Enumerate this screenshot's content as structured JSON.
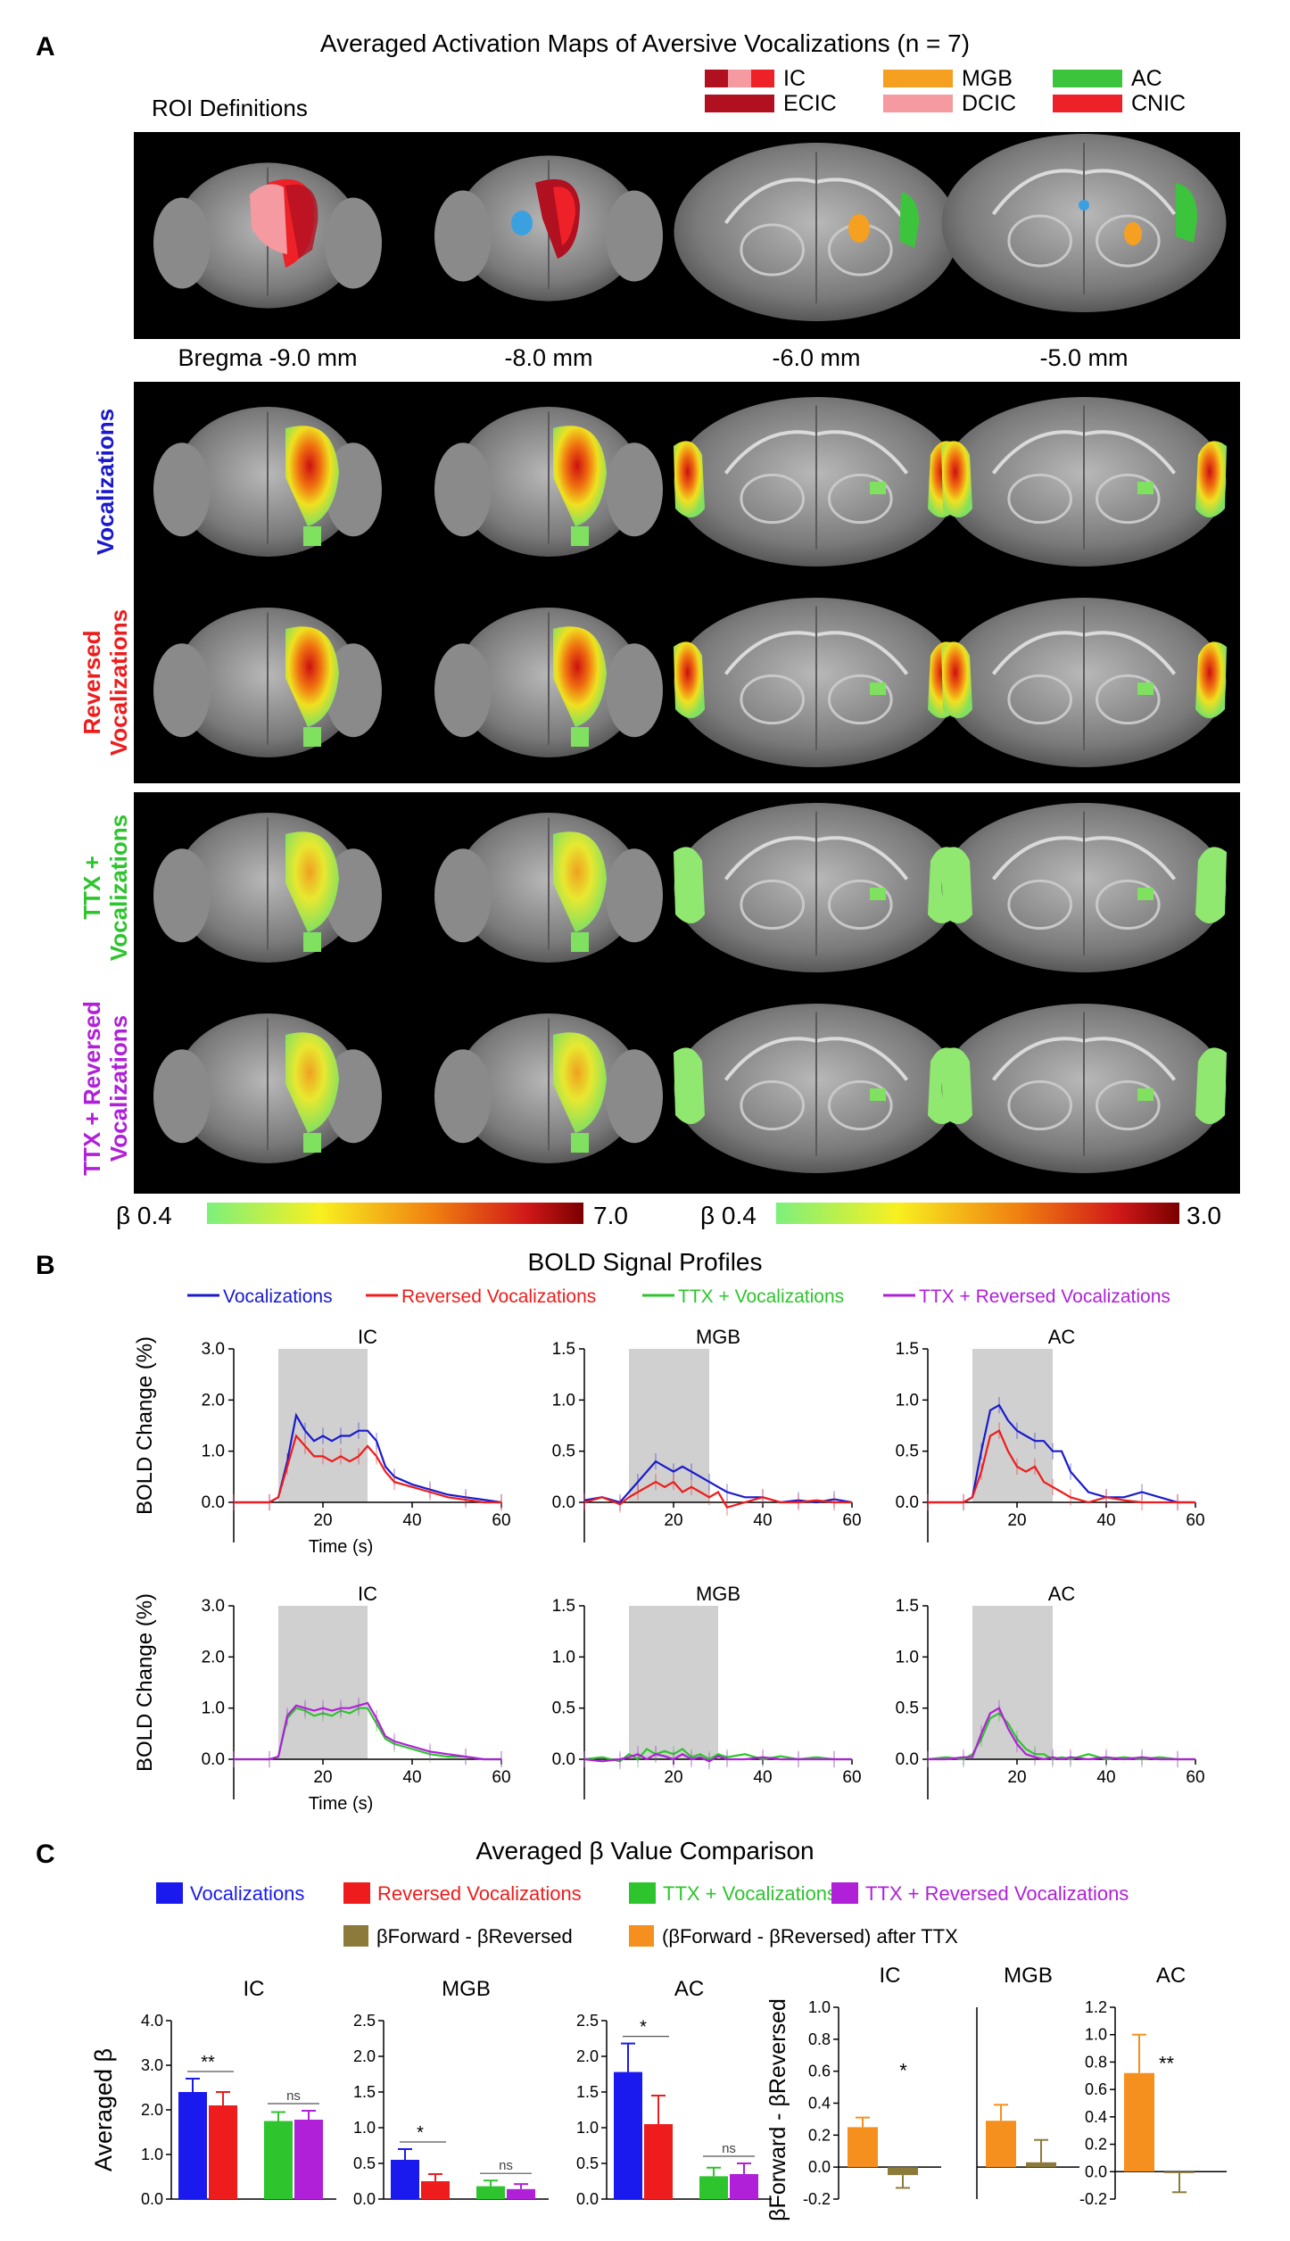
{
  "panelA": {
    "letter": "A",
    "title": "Averaged Activation Maps of Aversive Vocalizations (n = 7)",
    "roi_title": "ROI Definitions",
    "legend": [
      {
        "label": "IC",
        "color": "#c8102e"
      },
      {
        "label": "MGB",
        "color": "#f5a020"
      },
      {
        "label": "AC",
        "color": "#3cc43c"
      },
      {
        "label": "ECIC",
        "color": "#b01020"
      },
      {
        "label": "DCIC",
        "color": "#f59aa0"
      },
      {
        "label": "CNIC",
        "color": "#ee2028"
      }
    ],
    "bregma": [
      "Bregma -9.0 mm",
      "-8.0 mm",
      "-6.0 mm",
      "-5.0 mm"
    ],
    "rows": [
      {
        "label": "Vocalizations",
        "color": "#1a1acc"
      },
      {
        "label": "Reversed Vocalizations",
        "color": "#ee1c1c"
      },
      {
        "label": "TTX + Vocalizations",
        "color": "#2ec42e"
      },
      {
        "label": "TTX + Reversed Vocalizations",
        "color": "#b020d8"
      }
    ],
    "scale_left": {
      "min": "β 0.4",
      "max": "7.0"
    },
    "scale_right": {
      "min": "β 0.4",
      "max": "3.0"
    }
  },
  "panelB": {
    "letter": "B",
    "title": "BOLD Signal Profiles",
    "legend": [
      {
        "label": "Vocalizations",
        "color": "#1a1acc"
      },
      {
        "label": "Reversed Vocalizations",
        "color": "#ee1c1c"
      },
      {
        "label": "TTX + Vocalizations",
        "color": "#2ec42e"
      },
      {
        "label": "TTX + Reversed Vocalizations",
        "color": "#b020d8"
      }
    ],
    "ylabel": "BOLD Change (%)",
    "xlabel": "Time (s)"
  },
  "panelC": {
    "letter": "C",
    "title": "Averaged β Value Comparison",
    "legend": [
      {
        "label": "Vocalizations",
        "color": "#1a1aee"
      },
      {
        "label": "Reversed Vocalizations",
        "color": "#ee1c1c"
      },
      {
        "label": "TTX + Vocalizations",
        "color": "#2ec42e"
      },
      {
        "label": "TTX + Reversed Vocalizations",
        "color": "#b020d8"
      }
    ],
    "diff_legend": [
      {
        "label": "βForward - βReversed",
        "color": "#8c7a3a"
      },
      {
        "label": "(βForward - βReversed) after TTX",
        "color": "#f5901e"
      }
    ],
    "ylabel_left": "Averaged β",
    "ylabel_right": "βForward - βReversed"
  },
  "chart_data": [
    {
      "type": "line",
      "title": "IC",
      "xlabel": "Time (s)",
      "ylabel": "BOLD Change (%)",
      "xlim": [
        0,
        60
      ],
      "ylim": [
        0,
        3.0
      ],
      "yticks": [
        0.0,
        1.0,
        2.0,
        3.0
      ],
      "xticks": [
        20,
        40,
        60
      ],
      "stimulus": [
        10,
        30
      ],
      "series": [
        {
          "name": "Vocalizations",
          "color": "#1a1acc",
          "x": [
            0,
            4,
            8,
            10,
            12,
            14,
            16,
            18,
            20,
            22,
            24,
            26,
            28,
            30,
            32,
            34,
            36,
            40,
            44,
            48,
            52,
            56,
            60
          ],
          "y": [
            0,
            0,
            0,
            0.1,
            0.8,
            1.7,
            1.4,
            1.2,
            1.3,
            1.2,
            1.3,
            1.3,
            1.4,
            1.4,
            1.2,
            0.7,
            0.5,
            0.35,
            0.25,
            0.15,
            0.1,
            0.05,
            0
          ]
        },
        {
          "name": "Reversed Vocalizations",
          "color": "#ee1c1c",
          "x": [
            0,
            4,
            8,
            10,
            12,
            14,
            16,
            18,
            20,
            22,
            24,
            26,
            28,
            30,
            32,
            34,
            36,
            40,
            44,
            48,
            52,
            56,
            60
          ],
          "y": [
            0,
            0,
            0,
            0.1,
            0.7,
            1.3,
            1.1,
            0.9,
            0.9,
            0.8,
            0.9,
            0.8,
            0.9,
            1.1,
            0.9,
            0.6,
            0.4,
            0.3,
            0.2,
            0.1,
            0.05,
            0,
            0
          ]
        }
      ]
    },
    {
      "type": "line",
      "title": "MGB",
      "xlabel": "",
      "ylabel": "",
      "xlim": [
        0,
        60
      ],
      "ylim": [
        0,
        1.5
      ],
      "yticks": [
        0.0,
        0.5,
        1.0,
        1.5
      ],
      "xticks": [
        20,
        40,
        60
      ],
      "stimulus": [
        10,
        28
      ],
      "series": [
        {
          "name": "Vocalizations",
          "color": "#1a1acc",
          "x": [
            0,
            4,
            8,
            10,
            12,
            14,
            16,
            18,
            20,
            22,
            24,
            26,
            28,
            30,
            32,
            36,
            40,
            44,
            48,
            52,
            56,
            60
          ],
          "y": [
            0.02,
            0.05,
            0,
            0.1,
            0.2,
            0.3,
            0.4,
            0.35,
            0.3,
            0.35,
            0.3,
            0.25,
            0.2,
            0.15,
            0.1,
            0.05,
            0.05,
            0,
            0.02,
            0,
            0.03,
            0
          ]
        },
        {
          "name": "Reversed Vocalizations",
          "color": "#ee1c1c",
          "x": [
            0,
            4,
            8,
            10,
            12,
            14,
            16,
            18,
            20,
            22,
            24,
            26,
            28,
            30,
            32,
            36,
            40,
            44,
            48,
            52,
            56,
            60
          ],
          "y": [
            0,
            0.05,
            -0.02,
            0.05,
            0.1,
            0.15,
            0.2,
            0.15,
            0.2,
            0.1,
            0.15,
            0.1,
            0.05,
            0.1,
            -0.05,
            0,
            0.05,
            0,
            0,
            0.02,
            0,
            0
          ]
        }
      ]
    },
    {
      "type": "line",
      "title": "AC",
      "xlabel": "",
      "ylabel": "",
      "xlim": [
        0,
        60
      ],
      "ylim": [
        0,
        1.5
      ],
      "yticks": [
        0.0,
        0.5,
        1.0,
        1.5
      ],
      "xticks": [
        20,
        40,
        60
      ],
      "stimulus": [
        10,
        28
      ],
      "series": [
        {
          "name": "Vocalizations",
          "color": "#1a1acc",
          "x": [
            0,
            4,
            8,
            10,
            12,
            14,
            16,
            18,
            20,
            22,
            24,
            26,
            28,
            30,
            32,
            36,
            40,
            44,
            48,
            52,
            56,
            60
          ],
          "y": [
            0,
            0,
            0,
            0.05,
            0.5,
            0.9,
            0.95,
            0.8,
            0.7,
            0.65,
            0.6,
            0.6,
            0.5,
            0.5,
            0.3,
            0.1,
            0.05,
            0.05,
            0.1,
            0.05,
            0,
            0
          ]
        },
        {
          "name": "Reversed Vocalizations",
          "color": "#ee1c1c",
          "x": [
            0,
            4,
            8,
            10,
            12,
            14,
            16,
            18,
            20,
            22,
            24,
            26,
            28,
            30,
            32,
            36,
            40,
            44,
            48,
            52,
            56,
            60
          ],
          "y": [
            0,
            0,
            0,
            0.05,
            0.3,
            0.65,
            0.7,
            0.5,
            0.35,
            0.3,
            0.35,
            0.2,
            0.15,
            0.1,
            0.05,
            0,
            0.05,
            0.02,
            0,
            0,
            0,
            0
          ]
        }
      ]
    },
    {
      "type": "line",
      "title": "IC",
      "xlabel": "Time (s)",
      "ylabel": "BOLD Change (%)",
      "xlim": [
        0,
        60
      ],
      "ylim": [
        0,
        3.0
      ],
      "yticks": [
        0.0,
        1.0,
        2.0,
        3.0
      ],
      "xticks": [
        20,
        40,
        60
      ],
      "stimulus": [
        10,
        30
      ],
      "series": [
        {
          "name": "TTX + Vocalizations",
          "color": "#2ec42e",
          "x": [
            0,
            4,
            8,
            10,
            12,
            14,
            16,
            18,
            20,
            22,
            24,
            26,
            28,
            30,
            32,
            34,
            36,
            40,
            44,
            48,
            52,
            56,
            60
          ],
          "y": [
            0,
            0,
            0,
            0.05,
            0.8,
            1.0,
            0.95,
            0.85,
            0.9,
            0.85,
            0.95,
            0.9,
            1.0,
            1.0,
            0.7,
            0.4,
            0.3,
            0.2,
            0.1,
            0.05,
            0.05,
            0,
            0
          ]
        },
        {
          "name": "TTX + Reversed Vocalizations",
          "color": "#b020d8",
          "x": [
            0,
            4,
            8,
            10,
            12,
            14,
            16,
            18,
            20,
            22,
            24,
            26,
            28,
            30,
            32,
            34,
            36,
            40,
            44,
            48,
            52,
            56,
            60
          ],
          "y": [
            0,
            0,
            0,
            0.05,
            0.85,
            1.05,
            1.0,
            0.95,
            1.0,
            0.95,
            1.0,
            1.0,
            1.05,
            1.1,
            0.8,
            0.45,
            0.35,
            0.25,
            0.15,
            0.1,
            0.05,
            0,
            0
          ]
        }
      ]
    },
    {
      "type": "line",
      "title": "MGB",
      "xlabel": "",
      "ylabel": "",
      "xlim": [
        0,
        60
      ],
      "ylim": [
        0,
        1.5
      ],
      "yticks": [
        0.0,
        0.5,
        1.0,
        1.5
      ],
      "xticks": [
        20,
        40,
        60
      ],
      "stimulus": [
        10,
        30
      ],
      "series": [
        {
          "name": "TTX + Vocalizations",
          "color": "#2ec42e",
          "x": [
            0,
            4,
            8,
            10,
            12,
            14,
            16,
            18,
            20,
            22,
            24,
            26,
            28,
            30,
            32,
            36,
            40,
            44,
            48,
            52,
            56,
            60
          ],
          "y": [
            0,
            0.02,
            -0.02,
            0.05,
            0,
            0.1,
            0.05,
            0.08,
            0.05,
            0.1,
            0.02,
            0.05,
            0,
            0.05,
            0.02,
            0.05,
            0,
            0.03,
            0,
            0.02,
            0,
            0
          ]
        },
        {
          "name": "TTX + Reversed Vocalizations",
          "color": "#b020d8",
          "x": [
            0,
            4,
            8,
            10,
            12,
            14,
            16,
            18,
            20,
            22,
            24,
            26,
            28,
            30,
            32,
            36,
            40,
            44,
            48,
            52,
            56,
            60
          ],
          "y": [
            0,
            -0.02,
            0,
            0.02,
            0.05,
            0,
            0.05,
            0.03,
            0,
            0.05,
            0,
            0.02,
            -0.02,
            0.03,
            0,
            0,
            0.02,
            0,
            0,
            0,
            0,
            0
          ]
        }
      ]
    },
    {
      "type": "line",
      "title": "AC",
      "xlabel": "",
      "ylabel": "",
      "xlim": [
        0,
        60
      ],
      "ylim": [
        0,
        1.5
      ],
      "yticks": [
        0.0,
        0.5,
        1.0,
        1.5
      ],
      "xticks": [
        20,
        40,
        60
      ],
      "stimulus": [
        10,
        28
      ],
      "series": [
        {
          "name": "TTX + Vocalizations",
          "color": "#2ec42e",
          "x": [
            0,
            4,
            8,
            10,
            12,
            14,
            16,
            18,
            20,
            22,
            24,
            26,
            28,
            30,
            32,
            36,
            40,
            44,
            48,
            52,
            56,
            60
          ],
          "y": [
            0,
            0.02,
            0,
            0.05,
            0.2,
            0.4,
            0.45,
            0.35,
            0.2,
            0.1,
            0.05,
            0.05,
            0,
            0.02,
            0,
            0.05,
            0,
            0.02,
            0,
            0.02,
            0,
            0
          ]
        },
        {
          "name": "TTX + Reversed Vocalizations",
          "color": "#b020d8",
          "x": [
            0,
            4,
            8,
            10,
            12,
            14,
            16,
            18,
            20,
            22,
            24,
            26,
            28,
            30,
            32,
            36,
            40,
            44,
            48,
            52,
            56,
            60
          ],
          "y": [
            0,
            0,
            0.02,
            0.02,
            0.25,
            0.45,
            0.5,
            0.3,
            0.15,
            0.05,
            0.02,
            0,
            0.02,
            0,
            0.02,
            0,
            0.02,
            0,
            0.02,
            0,
            0,
            0
          ]
        }
      ]
    },
    {
      "type": "bar",
      "title": "IC",
      "ylabel": "Averaged β",
      "ylim": [
        0,
        4.0
      ],
      "yticks": [
        0.0,
        1.0,
        2.0,
        3.0,
        4.0
      ],
      "categories": [
        "Vocalizations",
        "Reversed Vocalizations",
        "TTX + Vocalizations",
        "TTX + Reversed Vocalizations"
      ],
      "values": [
        2.4,
        2.1,
        1.75,
        1.78
      ],
      "errors": [
        0.3,
        0.3,
        0.2,
        0.2
      ],
      "annotations": [
        "**",
        "ns"
      ]
    },
    {
      "type": "bar",
      "title": "MGB",
      "ylabel": "",
      "ylim": [
        0,
        2.5
      ],
      "yticks": [
        0.0,
        0.5,
        1.0,
        1.5,
        2.0,
        2.5
      ],
      "categories": [
        "Vocalizations",
        "Reversed Vocalizations",
        "TTX + Vocalizations",
        "TTX + Reversed Vocalizations"
      ],
      "values": [
        0.55,
        0.25,
        0.18,
        0.14
      ],
      "errors": [
        0.15,
        0.1,
        0.08,
        0.07
      ],
      "annotations": [
        "*",
        "ns"
      ]
    },
    {
      "type": "bar",
      "title": "AC",
      "ylabel": "",
      "ylim": [
        0,
        2.5
      ],
      "yticks": [
        0.0,
        0.5,
        1.0,
        1.5,
        2.0,
        2.5
      ],
      "categories": [
        "Vocalizations",
        "Reversed Vocalizations",
        "TTX + Vocalizations",
        "TTX + Reversed Vocalizations"
      ],
      "values": [
        1.78,
        1.05,
        0.32,
        0.35
      ],
      "errors": [
        0.4,
        0.4,
        0.12,
        0.15
      ],
      "annotations": [
        "*",
        "ns"
      ]
    },
    {
      "type": "bar",
      "title": "IC",
      "ylabel": "βForward - βReversed",
      "ylim": [
        -0.2,
        1.0
      ],
      "yticks": [
        -0.2,
        0.0,
        0.2,
        0.4,
        0.6,
        0.8,
        1.0
      ],
      "categories": [
        "after TTX",
        "βForward - βReversed"
      ],
      "values": [
        0.25,
        -0.05
      ],
      "errors": [
        0.06,
        0.08
      ],
      "annotations": [
        "*"
      ]
    },
    {
      "type": "bar",
      "title": "MGB",
      "ylabel": "",
      "ylim": [
        -0.2,
        1.0
      ],
      "yticks": [],
      "categories": [
        "after TTX",
        "βForward - βReversed"
      ],
      "values": [
        0.29,
        0.03
      ],
      "errors": [
        0.1,
        0.14
      ],
      "annotations": []
    },
    {
      "type": "bar",
      "title": "AC",
      "ylabel": "",
      "ylim": [
        -0.2,
        1.2
      ],
      "yticks": [
        -0.2,
        0.0,
        0.2,
        0.4,
        0.6,
        0.8,
        1.0,
        1.2
      ],
      "categories": [
        "after TTX",
        "βForward - βReversed"
      ],
      "values": [
        0.72,
        -0.01
      ],
      "errors": [
        0.28,
        0.14
      ],
      "annotations": [
        "**"
      ]
    }
  ]
}
